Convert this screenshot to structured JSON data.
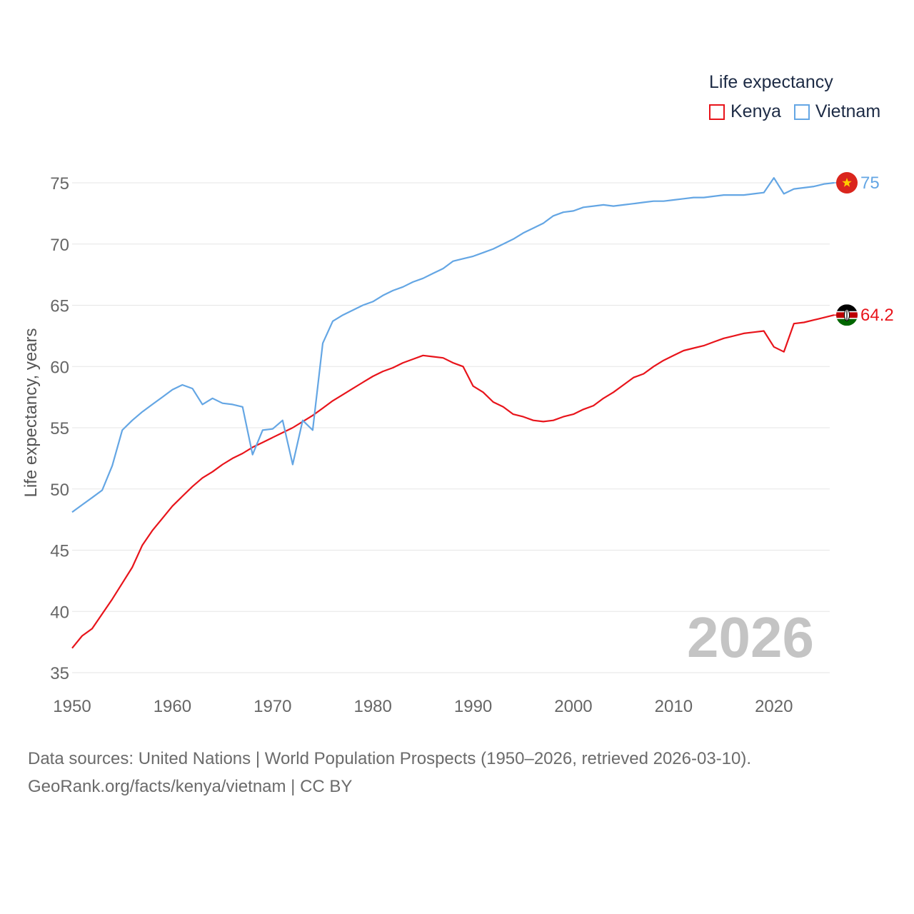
{
  "legend": {
    "title": "Life expectancy",
    "items": [
      {
        "label": "Kenya",
        "color": "#e8141b"
      },
      {
        "label": "Vietnam",
        "color": "#64a6e4"
      }
    ]
  },
  "source": {
    "line1": "Data sources: United Nations | World Population Prospects (1950–2026, retrieved 2026-03-10).",
    "line2": "GeoRank.org/facts/kenya/vietnam | CC BY"
  },
  "chart_data": {
    "type": "line",
    "title": "Life expectancy",
    "xlabel": "",
    "ylabel": "Life expectancy, years",
    "year_watermark": "2026",
    "xlim": [
      1950,
      2026
    ],
    "ylim": [
      35,
      75
    ],
    "xticks": [
      1950,
      1960,
      1970,
      1980,
      1990,
      2000,
      2010,
      2020
    ],
    "yticks": [
      35,
      40,
      45,
      50,
      55,
      60,
      65,
      70,
      75
    ],
    "grid": true,
    "legend_position": "top-right",
    "x": [
      1950,
      1951,
      1952,
      1953,
      1954,
      1955,
      1956,
      1957,
      1958,
      1959,
      1960,
      1961,
      1962,
      1963,
      1964,
      1965,
      1966,
      1967,
      1968,
      1969,
      1970,
      1971,
      1972,
      1973,
      1974,
      1975,
      1976,
      1977,
      1978,
      1979,
      1980,
      1981,
      1982,
      1983,
      1984,
      1985,
      1986,
      1987,
      1988,
      1989,
      1990,
      1991,
      1992,
      1993,
      1994,
      1995,
      1996,
      1997,
      1998,
      1999,
      2000,
      2001,
      2002,
      2003,
      2004,
      2005,
      2006,
      2007,
      2008,
      2009,
      2010,
      2011,
      2012,
      2013,
      2014,
      2015,
      2016,
      2017,
      2018,
      2019,
      2020,
      2021,
      2022,
      2023,
      2024,
      2025,
      2026
    ],
    "series": [
      {
        "name": "Kenya",
        "color": "#e8141b",
        "end_label": "64.2",
        "values": [
          37.0,
          38.0,
          38.6,
          39.8,
          41.0,
          42.3,
          43.6,
          45.4,
          46.6,
          47.6,
          48.6,
          49.4,
          50.2,
          50.9,
          51.4,
          52.0,
          52.5,
          52.9,
          53.4,
          53.8,
          54.2,
          54.6,
          55.0,
          55.5,
          56.0,
          56.6,
          57.2,
          57.7,
          58.2,
          58.7,
          59.2,
          59.6,
          59.9,
          60.3,
          60.6,
          60.9,
          60.8,
          60.7,
          60.3,
          60.0,
          58.4,
          57.9,
          57.1,
          56.7,
          56.1,
          55.9,
          55.6,
          55.5,
          55.6,
          55.9,
          56.1,
          56.5,
          56.8,
          57.4,
          57.9,
          58.5,
          59.1,
          59.4,
          60.0,
          60.5,
          60.9,
          61.3,
          61.5,
          61.7,
          62.0,
          62.3,
          62.5,
          62.7,
          62.8,
          62.9,
          61.6,
          61.2,
          63.5,
          63.6,
          63.8,
          64.0,
          64.2
        ]
      },
      {
        "name": "Vietnam",
        "color": "#64a6e4",
        "end_label": "75",
        "values": [
          48.1,
          48.7,
          49.3,
          49.9,
          51.9,
          54.8,
          55.6,
          56.3,
          56.9,
          57.5,
          58.1,
          58.5,
          58.2,
          56.9,
          57.4,
          57.0,
          56.9,
          56.7,
          52.8,
          54.8,
          54.9,
          55.6,
          52.0,
          55.6,
          54.8,
          61.9,
          63.7,
          64.2,
          64.6,
          65.0,
          65.3,
          65.8,
          66.2,
          66.5,
          66.9,
          67.2,
          67.6,
          68.0,
          68.6,
          68.8,
          69.0,
          69.3,
          69.6,
          70.0,
          70.4,
          70.9,
          71.3,
          71.7,
          72.3,
          72.6,
          72.7,
          73.0,
          73.1,
          73.2,
          73.1,
          73.2,
          73.3,
          73.4,
          73.5,
          73.5,
          73.6,
          73.7,
          73.8,
          73.8,
          73.9,
          74.0,
          74.0,
          74.0,
          74.1,
          74.2,
          75.4,
          74.1,
          74.5,
          74.6,
          74.7,
          74.9,
          75.0
        ]
      }
    ]
  }
}
